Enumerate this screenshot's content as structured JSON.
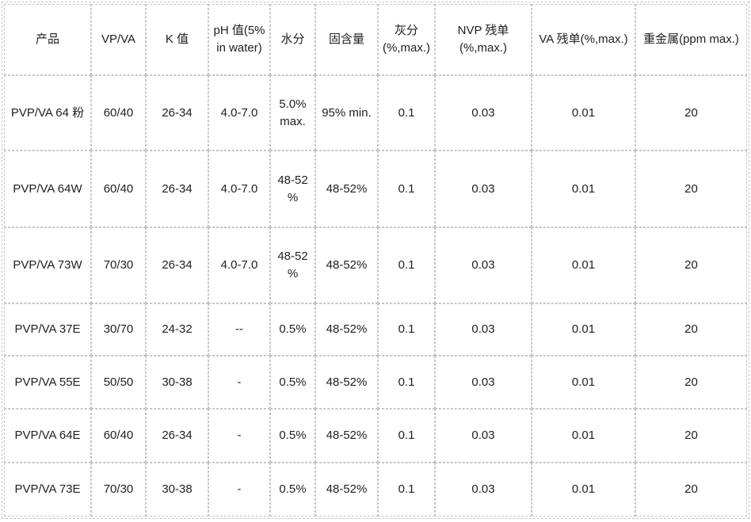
{
  "colors": {
    "border": "#c6c6c6",
    "text": "#212121",
    "background": "#ffffff"
  },
  "spec_table": {
    "headers": [
      "产品",
      "VP/VA",
      "K 值",
      "pH 值(5% in water)",
      "水分",
      "固含量",
      "灰分 (%,max.)",
      "NVP 残单 (%,max.)",
      "VA 残单(%,max.)",
      "重金属(ppm max.)"
    ],
    "rows": [
      [
        "PVP/VA 64 粉",
        "60/40",
        "26-34",
        "4.0-7.0",
        "5.0% max.",
        "95% min.",
        "0.1",
        "0.03",
        "0.01",
        "20"
      ],
      [
        "PVP/VA 64W",
        "60/40",
        "26-34",
        "4.0-7.0",
        "48-52 %",
        "48-52%",
        "0.1",
        "0.03",
        "0.01",
        "20"
      ],
      [
        "PVP/VA 73W",
        "70/30",
        "26-34",
        "4.0-7.0",
        "48-52 %",
        "48-52%",
        "0.1",
        "0.03",
        "0.01",
        "20"
      ],
      [
        "PVP/VA 37E",
        "30/70",
        "24-32",
        "--",
        "0.5%",
        "48-52%",
        "0.1",
        "0.03",
        "0.01",
        "20"
      ],
      [
        "PVP/VA 55E",
        "50/50",
        "30-38",
        "-",
        "0.5%",
        "48-52%",
        "0.1",
        "0.03",
        "0.01",
        "20"
      ],
      [
        "PVP/VA 64E",
        "60/40",
        "26-34",
        "-",
        "0.5%",
        "48-52%",
        "0.1",
        "0.03",
        "0.01",
        "20"
      ],
      [
        "PVP/VA 73E",
        "70/30",
        "30-38",
        "-",
        "0.5%",
        "48-52%",
        "0.1",
        "0.03",
        "0.01",
        "20"
      ]
    ]
  }
}
